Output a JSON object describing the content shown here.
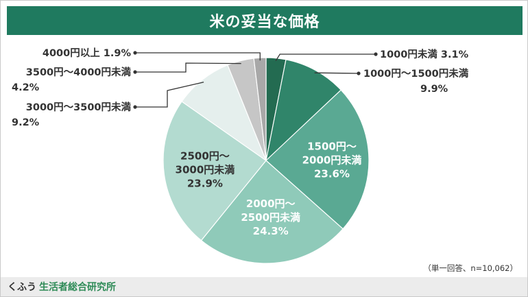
{
  "title": "米の妥当な価格",
  "note": "（単一回答、n=10,062）",
  "footer": {
    "brand_prefix": "くふう",
    "brand_name": "生活者総合研究所"
  },
  "chart_data": {
    "type": "pie",
    "title": "米の妥当な価格",
    "slices": [
      {
        "label": "1000円未満",
        "value": 3.1,
        "value_text": "3.1%",
        "color": "#236b51"
      },
      {
        "label": "1000円～1500円未満",
        "value": 9.9,
        "value_text": "9.9%",
        "color": "#30856a"
      },
      {
        "label": "1500円～2000円未満",
        "value": 23.6,
        "value_text": "23.6%",
        "color": "#5aa993"
      },
      {
        "label": "2000円～2500円未満",
        "value": 24.3,
        "value_text": "24.3%",
        "color": "#8fcab9"
      },
      {
        "label": "2500円～3000円未満",
        "value": 23.9,
        "value_text": "23.9%",
        "color": "#b3dbd0"
      },
      {
        "label": "3000円～3500円未満",
        "value": 9.2,
        "value_text": "9.2%",
        "color": "#e5efed"
      },
      {
        "label": "3500円～4000円未満",
        "value": 4.2,
        "value_text": "4.2%",
        "color": "#c6c6c6"
      },
      {
        "label": "4000円以上",
        "value": 1.9,
        "value_text": "1.9%",
        "color": "#a8a8a8"
      }
    ],
    "start_angle_deg": 0,
    "direction": "clockwise"
  }
}
